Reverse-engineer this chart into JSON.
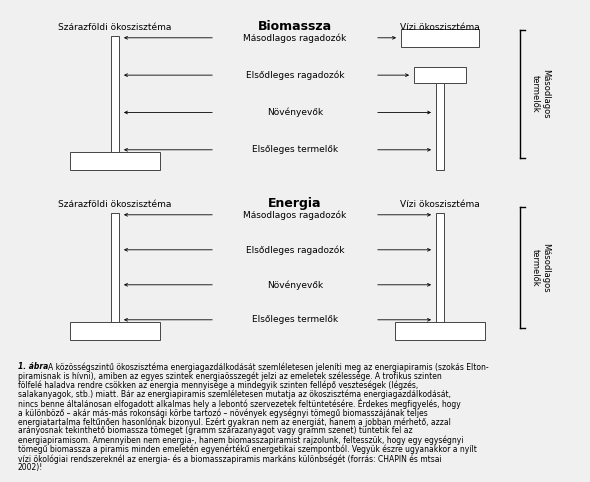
{
  "bg_color": "#f0f0f0",
  "title1": "Biomassza",
  "title2": "Energia",
  "left_label": "Szárazföldi ökoszisztéma",
  "right_label": "Vízi ökoszisztéma",
  "side_label": "Másodlagos\ntermelők",
  "levels": [
    "Másodlagos ragadozók",
    "Elsődleges ragadozók",
    "Növényevők",
    "Elsőleges termelők"
  ],
  "caption_bold": "1. ábra",
  "caption_rest": "  A közösségszintű ökoszisztéma energiagazdálkodását szemléletesen jeleníti meg az energiapiramis (szokás Elton-piramisnak is hívni), amiben az egyes szintek energiaösszegét jelzi az emeletek szélessége. A trofikus szinten fölfelé haladva rendre csökken az energia mennyisége a mindegyik szinten fellépő veszteségek (légzés, salakanyagok, stb.) miatt. Bár az energiapiramis szemléletesen mutatja az ökoszisztéma energiagazdálkodását, nincs benne általánosan elfogadott alkalmas hely a lebontó szervezetek feltüntetésére. Érdekes megfigyelés, hogy a különböző – akár más-más rokonsági körbe tartozó – növények egységnyi tömegű biomasszájának teljes energiatartalma feltűnően hasonlónak bizonyul. Ezért gyakran nem az energiát, hanem a jobban mérhető, azzal arányosnak tekinthető biomassza tömeget (gramm szárazanyagot vagy gramm szenet) tüntetik fel az energiapiramisom. Amennyiben nem energia-, hanem biomasszapiramist rajzolunk, feltesszük, hogy egy egységnyi tömegű biomassza a piramis minden emeletén egyenértékű energetikai szempontból. Vegyük észre ugyanakkor a nyílt vízi ökológiai rendszereknél az energia- és a biomasszapiramis markáns különbségét (forrás: CHAPIN és mtsai 2002)!"
}
